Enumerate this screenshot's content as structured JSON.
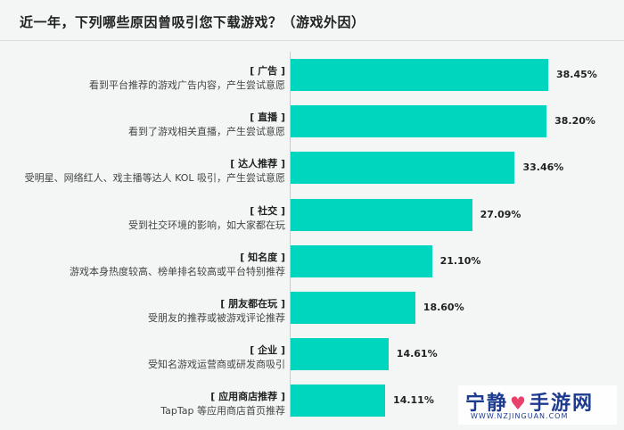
{
  "title": "近一年，下列哪些原因曾吸引您下载游戏？（游戏外因）",
  "chart_data": {
    "type": "bar",
    "orientation": "horizontal",
    "title": "近一年，下列哪些原因曾吸引您下载游戏？（游戏外因）",
    "categories": [
      "广告",
      "直播",
      "达人推荐",
      "社交",
      "知名度",
      "朋友都在玩",
      "企业",
      "应用商店推荐"
    ],
    "descriptions": [
      "看到平台推荐的游戏广告内容，产生尝试意愿",
      "看到了游戏相关直播，产生尝试意愿",
      "受明星、网络红人、戏主播等达人 KOL 吸引，产生尝试意愿",
      "受到社交环境的影响，如大家都在玩",
      "游戏本身热度较高、榜单排名较高或平台特别推荐",
      "受朋友的推荐或被游戏评论推荐",
      "受知名游戏运营商或研发商吸引",
      "TapTap 等应用商店首页推荐"
    ],
    "values": [
      38.45,
      38.2,
      33.46,
      27.09,
      21.1,
      18.6,
      14.61,
      14.11
    ],
    "value_labels": [
      "38.45%",
      "38.20%",
      "33.46%",
      "27.09%",
      "21.10%",
      "18.60%",
      "14.61%",
      "14.11%"
    ],
    "xlim": [
      0,
      40
    ],
    "grid": false,
    "color": "#00d6bd"
  },
  "watermark": {
    "brand": "宁静",
    "brand2": "手游网",
    "url": "WWW.NZJINGUAN.COM"
  }
}
